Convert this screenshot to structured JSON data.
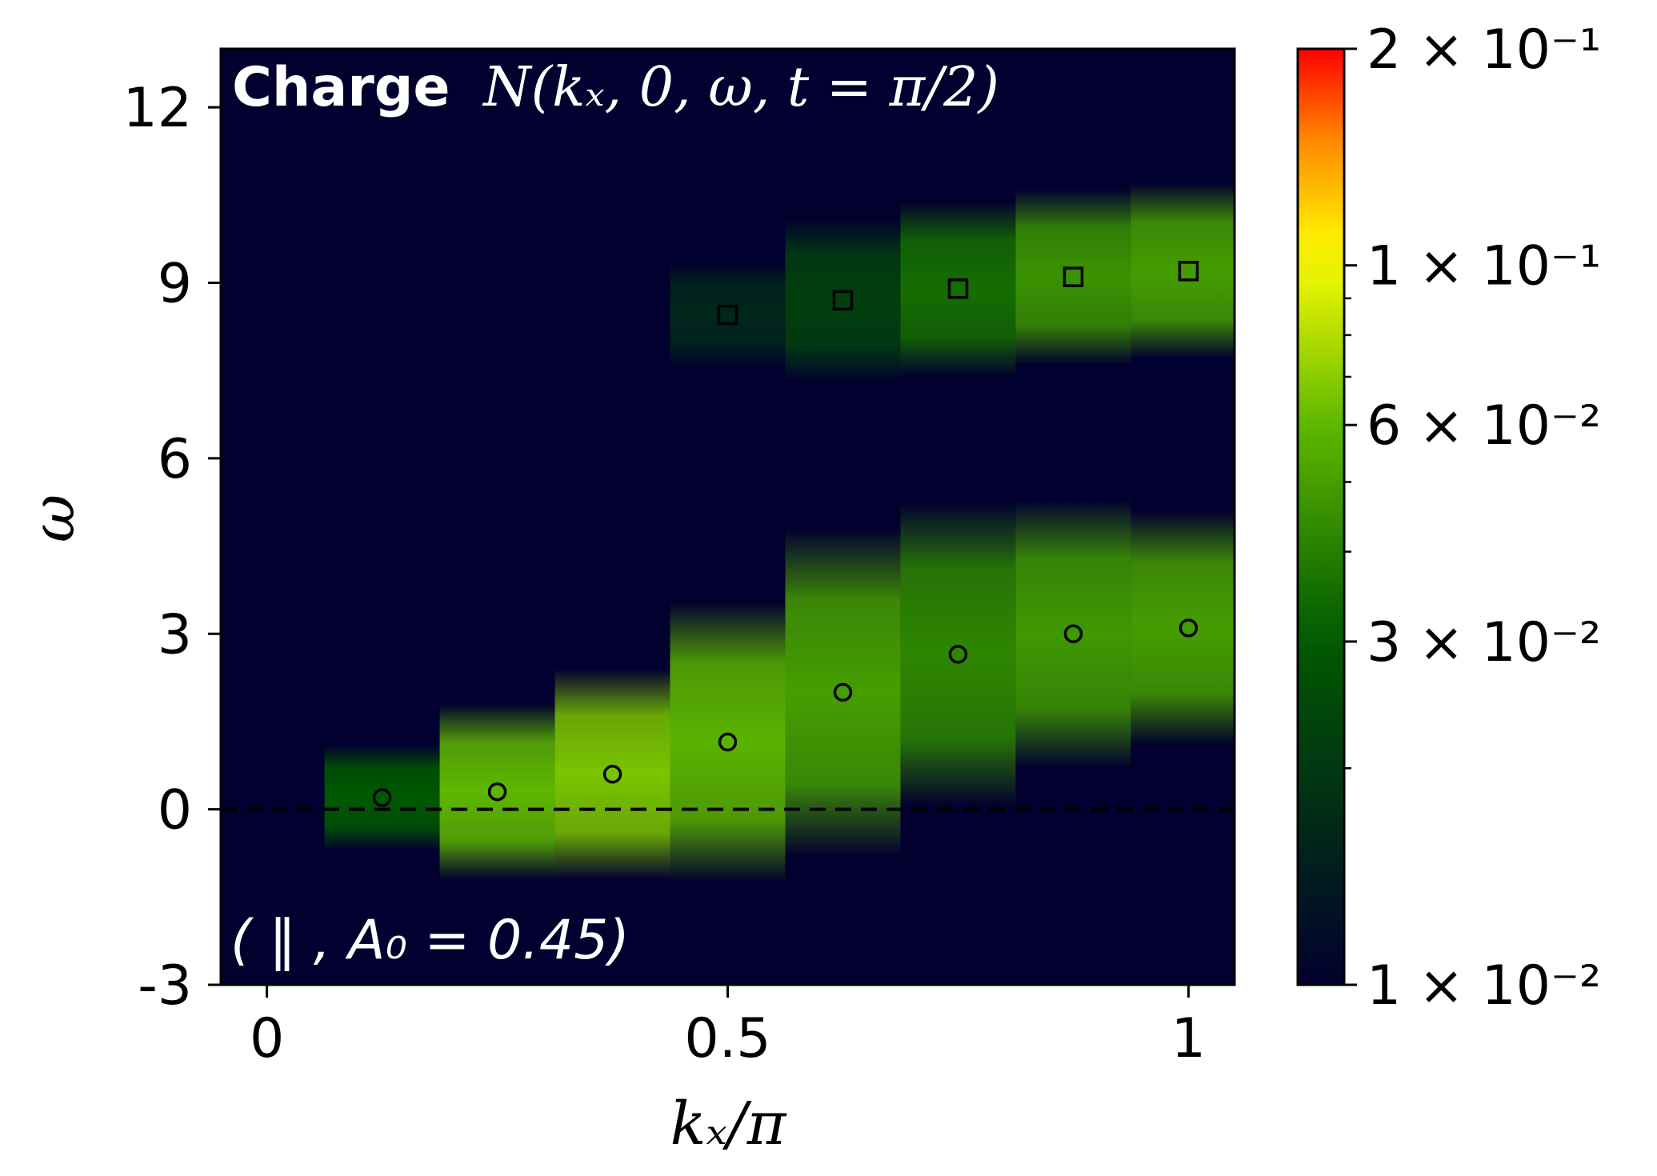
{
  "chart_data": {
    "type": "heatmap",
    "title_bold": "Charge",
    "title_math": "N(kₓ, 0, ω, t = π/2)",
    "annotation": "( ‖ , A₀ = 0.45)",
    "xlabel": "kₓ/π",
    "ylabel": "ω",
    "xlim": [
      -0.05,
      1.05
    ],
    "ylim": [
      -3,
      13
    ],
    "xticks": [
      0,
      0.5,
      1
    ],
    "xtick_labels": [
      "0",
      "0.5",
      "1"
    ],
    "yticks": [
      -3,
      0,
      3,
      6,
      9,
      12
    ],
    "ytick_labels": [
      "-3",
      "0",
      "3",
      "6",
      "9",
      "12"
    ],
    "colorbar": {
      "scale": "log",
      "range": [
        0.01,
        0.2
      ],
      "tick_values": [
        0.01,
        0.03,
        0.06,
        0.1,
        0.2
      ],
      "tick_labels": [
        "1 × 10⁻²",
        "3 × 10⁻²",
        "6 × 10⁻²",
        "1 × 10⁻¹",
        "2 × 10⁻¹"
      ],
      "colors": [
        "#02002e",
        "#005a00",
        "#5fb800",
        "#ffff00",
        "#ff8c00",
        "#ff0000"
      ]
    },
    "background_color": "#02002e",
    "k_points": [
      0.125,
      0.25,
      0.375,
      0.5,
      0.625,
      0.75,
      0.875,
      1.0
    ],
    "lower_band": {
      "marker": "circle",
      "omega": [
        0.2,
        0.3,
        0.6,
        1.15,
        2.0,
        2.65,
        3.0,
        3.1
      ],
      "half_width": [
        0.9,
        1.5,
        1.8,
        2.4,
        2.8,
        2.6,
        2.3,
        2.0
      ],
      "intensity": [
        0.03,
        0.06,
        0.066,
        0.058,
        0.05,
        0.042,
        0.048,
        0.05
      ]
    },
    "upper_band": {
      "marker": "square",
      "omega": [
        8.45,
        8.7,
        8.9,
        9.1,
        9.2
      ],
      "k_index_start": 3,
      "half_width": [
        0.9,
        1.4,
        1.5,
        1.5,
        1.5
      ],
      "intensity": [
        0.016,
        0.022,
        0.035,
        0.046,
        0.05
      ]
    },
    "reference_line": {
      "y": 0,
      "style": "dashed"
    }
  }
}
